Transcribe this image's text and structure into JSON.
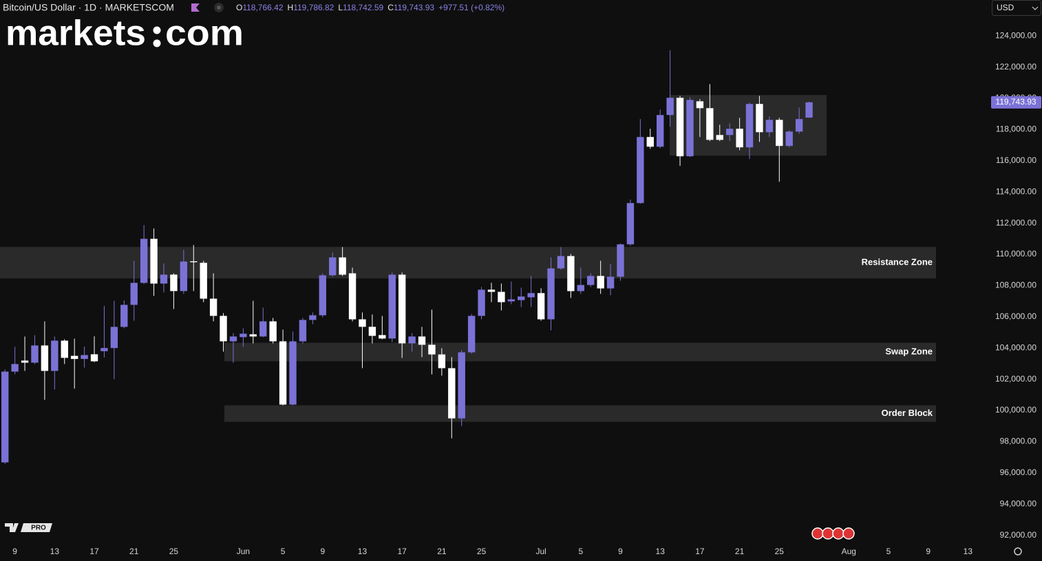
{
  "header": {
    "symbol": "Bitcoin/US Dollar · 1D · MARKETSCOM",
    "ohlc": [
      {
        "key": "O",
        "value": "118,766.42"
      },
      {
        "key": "H",
        "value": "119,786.82"
      },
      {
        "key": "L",
        "value": "118,742.59"
      },
      {
        "key": "C",
        "value": "119,743.93"
      }
    ],
    "change": "+977.51 (+0.82%)",
    "currency": "USD",
    "logo": [
      "markets",
      "com"
    ],
    "badge": "PRO"
  },
  "chart_data": {
    "type": "candlestick",
    "categories": [
      null,
      "9",
      null,
      null,
      null,
      "13",
      null,
      null,
      null,
      "17",
      null,
      null,
      null,
      "21",
      null,
      null,
      null,
      "25",
      null,
      null,
      null,
      null,
      null,
      null,
      "Jun",
      null,
      null,
      null,
      "5",
      null,
      null,
      null,
      "9",
      null,
      null,
      null,
      "13",
      null,
      null,
      null,
      "17",
      null,
      null,
      null,
      "21",
      null,
      null,
      null,
      "25",
      null,
      null,
      null,
      null,
      null,
      "Jul",
      null,
      null,
      null,
      "5",
      null,
      null,
      null,
      "9",
      null,
      null,
      null,
      "13",
      null,
      null,
      null,
      "17",
      null,
      null,
      null,
      "21",
      null,
      null,
      null,
      "25",
      null,
      null,
      null,
      null,
      null,
      null,
      "Aug",
      null,
      null,
      null,
      "5",
      null,
      null,
      null,
      "9",
      null,
      null,
      null,
      "13",
      null
    ],
    "open": [
      96672,
      102490,
      103196,
      103063,
      104165,
      102534,
      104474,
      103500,
      103300,
      103600,
      103800,
      104000,
      105356,
      106766,
      108176,
      110997,
      108130,
      108705,
      107650,
      109560,
      109460,
      107163,
      106061,
      104430,
      104700,
      104880,
      104740,
      105710,
      104430,
      100375,
      104430,
      105800,
      106100,
      108661,
      109807,
      108790,
      105840,
      105360,
      104830,
      104610,
      108700,
      104300,
      104740,
      104210,
      103590,
      102710,
      99493,
      103725,
      106061,
      107740,
      107600,
      106990,
      107070,
      107250,
      107520,
      105840,
      109102,
      109895,
      107647,
      108040,
      108620,
      107820,
      108570,
      110645,
      113289,
      117521,
      116900,
      118931,
      120033,
      116287,
      119810,
      119370,
      117650,
      117650,
      118050,
      116860,
      119640,
      117830,
      118620,
      116950,
      117870,
      118766.42,
      null,
      null,
      null,
      null,
      null,
      null,
      null,
      null,
      null,
      null,
      null,
      null,
      null,
      null,
      null,
      null,
      null
    ],
    "high": [
      102622,
      104077,
      104738,
      104826,
      105708,
      104738,
      104562,
      104600,
      104100,
      104750,
      106700,
      107030,
      107050,
      109587,
      111879,
      111660,
      109410,
      108790,
      110290,
      110600,
      109590,
      108790,
      106240,
      104960,
      105270,
      107030,
      106590,
      105930,
      105180,
      105050,
      105930,
      106280,
      108790,
      110120,
      110470,
      109150,
      106280,
      106150,
      106060,
      108840,
      108840,
      104960,
      105360,
      106460,
      103990,
      103420,
      103860,
      106190,
      107910,
      108180,
      108130,
      108260,
      107870,
      108620,
      107830,
      109810,
      110470,
      110030,
      109150,
      108790,
      109590,
      109370,
      110690,
      113510,
      118670,
      118050,
      119280,
      123074,
      120160,
      120080,
      119950,
      120910,
      118310,
      118400,
      118750,
      119720,
      120160,
      118840,
      118750,
      117960,
      119410,
      119786.82,
      null,
      null,
      null,
      null,
      null,
      null,
      null,
      null,
      null,
      null,
      null,
      null,
      null,
      null,
      null,
      null,
      null
    ],
    "low": [
      96584,
      102314,
      102534,
      102975,
      100683,
      101344,
      102975,
      101400,
      102750,
      103100,
      103400,
      102006,
      105270,
      105752,
      108100,
      107339,
      107560,
      106500,
      107470,
      107650,
      106940,
      105710,
      103769,
      103060,
      104080,
      104300,
      104700,
      104300,
      100330,
      100330,
      104300,
      105530,
      105970,
      108570,
      108620,
      105710,
      102711,
      104300,
      104560,
      104390,
      103370,
      103770,
      103420,
      102310,
      102230,
      98215,
      99010,
      103640,
      105840,
      106940,
      106410,
      106810,
      106630,
      106630,
      105750,
      105130,
      109010,
      107210,
      107470,
      107910,
      107470,
      107380,
      108310,
      110560,
      113250,
      116770,
      116810,
      118180,
      115670,
      116240,
      117520,
      117260,
      117260,
      117260,
      116680,
      116110,
      117210,
      117520,
      114656,
      116860,
      117740,
      118742.59,
      null,
      null,
      null,
      null,
      null,
      null,
      null,
      null,
      null,
      null,
      null,
      null,
      null,
      null,
      null,
      null,
      null
    ],
    "close": [
      102490,
      102975,
      103063,
      104165,
      102534,
      104474,
      103372,
      103300,
      103550,
      103150,
      104000,
      105356,
      106766,
      108176,
      110997,
      108130,
      108705,
      107650,
      109543,
      109500,
      107163,
      106061,
      104430,
      104740,
      104920,
      104740,
      105710,
      104430,
      100375,
      104430,
      105800,
      106100,
      108661,
      109807,
      108700,
      105840,
      105360,
      104780,
      104610,
      108700,
      104300,
      104740,
      104210,
      103590,
      102710,
      99493,
      103725,
      106061,
      107736,
      107600,
      106940,
      107120,
      107300,
      107520,
      105840,
      109102,
      109895,
      107647,
      108040,
      108620,
      107820,
      108570,
      110645,
      113289,
      117521,
      116900,
      118931,
      120033,
      116287,
      119900,
      119370,
      117340,
      117340,
      118050,
      116860,
      119640,
      117830,
      118620,
      116950,
      117870,
      118670,
      119743.93,
      null,
      null,
      null,
      null,
      null,
      null,
      null,
      null,
      null,
      null,
      null,
      null,
      null,
      null,
      null,
      null,
      null
    ],
    "up_color": "#7b72d6",
    "down_color": "#ffffff",
    "ylim": [
      91500,
      126300
    ],
    "yticks": [
      {
        "value": 92000,
        "label": "92,000.00"
      },
      {
        "value": 94000,
        "label": "94,000.00"
      },
      {
        "value": 96000,
        "label": "96,000.00"
      },
      {
        "value": 98000,
        "label": "98,000.00"
      },
      {
        "value": 100000,
        "label": "100,000.00"
      },
      {
        "value": 102000,
        "label": "102,000.00"
      },
      {
        "value": 104000,
        "label": "104,000.00"
      },
      {
        "value": 106000,
        "label": "106,000.00"
      },
      {
        "value": 108000,
        "label": "108,000.00"
      },
      {
        "value": 110000,
        "label": "110,000.00"
      },
      {
        "value": 112000,
        "label": "112,000.00"
      },
      {
        "value": 114000,
        "label": "114,000.00"
      },
      {
        "value": 116000,
        "label": "116,000.00"
      },
      {
        "value": 118000,
        "label": "118,000.00"
      },
      {
        "value": 120000,
        "label": "120,000.00"
      },
      {
        "value": 122000,
        "label": "122,000.00"
      },
      {
        "value": 124000,
        "label": "124,000.00"
      }
    ],
    "last_price_label": "119,743.93",
    "zones": [
      {
        "label": "Resistance Zone",
        "low": 108460,
        "high": 110480
      },
      {
        "label": "Swap Zone",
        "low": 103150,
        "high": 104340
      },
      {
        "label": "Order Block",
        "low": 99270,
        "high": 100330
      }
    ],
    "range_box": {
      "low": 116330,
      "high": 120210
    },
    "grid": false
  }
}
